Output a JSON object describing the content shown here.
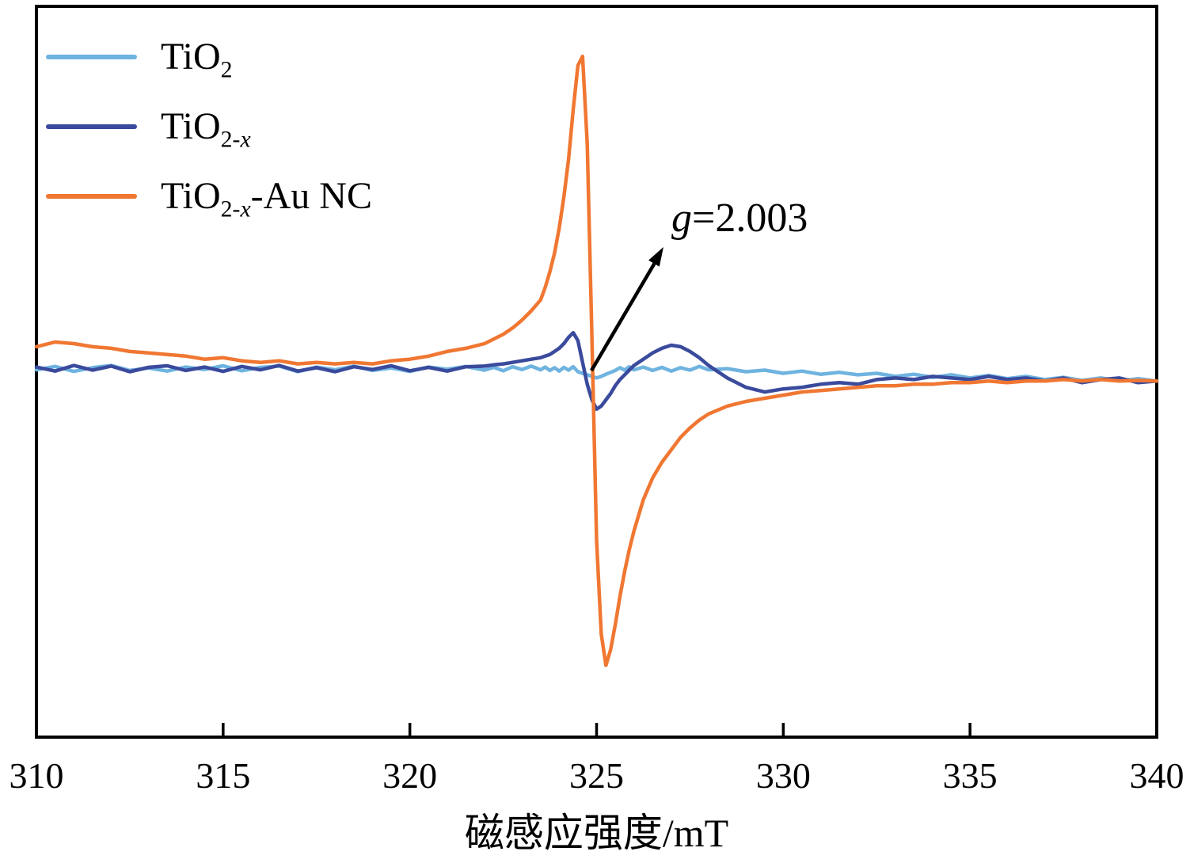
{
  "legend": {
    "items": [
      {
        "base": "TiO",
        "sub_num": "2",
        "sub_var": "",
        "suffix": ""
      },
      {
        "base": "TiO",
        "sub_num": "2-",
        "sub_var": "x",
        "suffix": ""
      },
      {
        "base": "TiO",
        "sub_num": "2-",
        "sub_var": "x",
        "suffix": "-Au NC"
      }
    ]
  },
  "annotation": {
    "var": "g",
    "value": "=2.003"
  },
  "axis": {
    "x_title": "磁感应强度/mT"
  },
  "chart_data": {
    "type": "line",
    "title": "",
    "xlabel": "磁感应强度/mT",
    "ylabel": "",
    "xlim": [
      310,
      340
    ],
    "ylim": [
      -1.18,
      1.16
    ],
    "x_ticks": [
      310,
      315,
      320,
      325,
      330,
      335,
      340
    ],
    "grid": false,
    "legend_position": "top-left",
    "annotations": [
      {
        "text": "g=2.003",
        "at_x": 325
      }
    ],
    "x": [
      310,
      310.5,
      311,
      311.5,
      312,
      312.5,
      313,
      313.5,
      314,
      314.5,
      315,
      315.5,
      316,
      316.5,
      317,
      317.5,
      318,
      318.5,
      319,
      319.5,
      320,
      320.5,
      321,
      321.5,
      322,
      322.25,
      322.5,
      322.75,
      323,
      323.25,
      323.5,
      323.625,
      323.75,
      323.875,
      324,
      324.125,
      324.25,
      324.375,
      324.5,
      324.625,
      324.75,
      324.875,
      325,
      325.125,
      325.25,
      325.375,
      325.5,
      325.625,
      325.75,
      325.875,
      326,
      326.25,
      326.5,
      326.75,
      327,
      327.25,
      327.5,
      327.75,
      328,
      328.5,
      329,
      329.5,
      330,
      330.5,
      331,
      331.5,
      332,
      332.5,
      333,
      333.5,
      334,
      334.5,
      335,
      335.5,
      336,
      336.5,
      337,
      337.5,
      338,
      338.5,
      339,
      339.5,
      340
    ],
    "series": [
      {
        "name": "TiO2",
        "color": "#6fb3e0",
        "values": [
          -0.004,
          0.007,
          -0.009,
          0.003,
          0.01,
          -0.006,
          0.002,
          -0.008,
          0.005,
          -0.003,
          0.009,
          -0.007,
          0.004,
          0.008,
          -0.01,
          0.005,
          -0.004,
          0.008,
          -0.006,
          0.002,
          -0.009,
          0.005,
          -0.002,
          0.007,
          -0.005,
          0.004,
          -0.007,
          0.006,
          -0.003,
          0.008,
          -0.004,
          0.005,
          -0.006,
          0.003,
          -0.008,
          0.004,
          -0.005,
          0.006,
          -0.01,
          -0.015,
          -0.02,
          -0.025,
          -0.03,
          -0.025,
          -0.018,
          -0.012,
          -0.006,
          0.003,
          -0.005,
          0.006,
          -0.004,
          0.005,
          -0.006,
          0.004,
          -0.008,
          0.003,
          -0.005,
          0.007,
          -0.004,
          0.0,
          -0.01,
          -0.005,
          -0.015,
          -0.008,
          -0.018,
          -0.012,
          -0.02,
          -0.015,
          -0.025,
          -0.018,
          -0.028,
          -0.02,
          -0.03,
          -0.022,
          -0.032,
          -0.025,
          -0.035,
          -0.028,
          -0.038,
          -0.03,
          -0.04,
          -0.032,
          -0.04
        ]
      },
      {
        "name": "TiO2-x",
        "color": "#3a4a9c",
        "values": [
          0.005,
          -0.008,
          0.01,
          -0.005,
          0.008,
          -0.01,
          0.004,
          0.009,
          -0.006,
          0.005,
          -0.009,
          0.007,
          -0.004,
          0.01,
          -0.008,
          0.003,
          -0.01,
          0.006,
          -0.003,
          0.009,
          -0.007,
          0.004,
          -0.008,
          0.006,
          0.008,
          0.012,
          0.015,
          0.02,
          0.025,
          0.03,
          0.035,
          0.04,
          0.045,
          0.055,
          0.065,
          0.08,
          0.1,
          0.115,
          0.09,
          0.02,
          -0.05,
          -0.1,
          -0.13,
          -0.12,
          -0.1,
          -0.08,
          -0.055,
          -0.035,
          -0.02,
          -0.005,
          0.01,
          0.03,
          0.05,
          0.065,
          0.075,
          0.07,
          0.055,
          0.035,
          0.01,
          -0.03,
          -0.06,
          -0.075,
          -0.065,
          -0.06,
          -0.05,
          -0.045,
          -0.05,
          -0.035,
          -0.03,
          -0.035,
          -0.025,
          -0.03,
          -0.035,
          -0.025,
          -0.035,
          -0.03,
          -0.04,
          -0.03,
          -0.045,
          -0.035,
          -0.03,
          -0.045,
          -0.04
        ]
      },
      {
        "name": "TiO2-x-Au NC",
        "color": "#f07732",
        "values": [
          0.07,
          0.085,
          0.08,
          0.07,
          0.065,
          0.055,
          0.05,
          0.045,
          0.04,
          0.03,
          0.035,
          0.025,
          0.02,
          0.025,
          0.015,
          0.02,
          0.015,
          0.02,
          0.015,
          0.025,
          0.03,
          0.04,
          0.055,
          0.065,
          0.08,
          0.095,
          0.11,
          0.13,
          0.155,
          0.185,
          0.22,
          0.26,
          0.31,
          0.37,
          0.45,
          0.55,
          0.67,
          0.83,
          0.97,
          1.0,
          0.72,
          0.1,
          -0.55,
          -0.85,
          -0.95,
          -0.9,
          -0.82,
          -0.73,
          -0.65,
          -0.58,
          -0.52,
          -0.42,
          -0.35,
          -0.3,
          -0.26,
          -0.22,
          -0.19,
          -0.165,
          -0.145,
          -0.12,
          -0.105,
          -0.095,
          -0.085,
          -0.075,
          -0.07,
          -0.065,
          -0.06,
          -0.055,
          -0.055,
          -0.05,
          -0.05,
          -0.045,
          -0.045,
          -0.04,
          -0.045,
          -0.04,
          -0.04,
          -0.035,
          -0.04,
          -0.035,
          -0.04,
          -0.038,
          -0.04
        ]
      }
    ]
  }
}
